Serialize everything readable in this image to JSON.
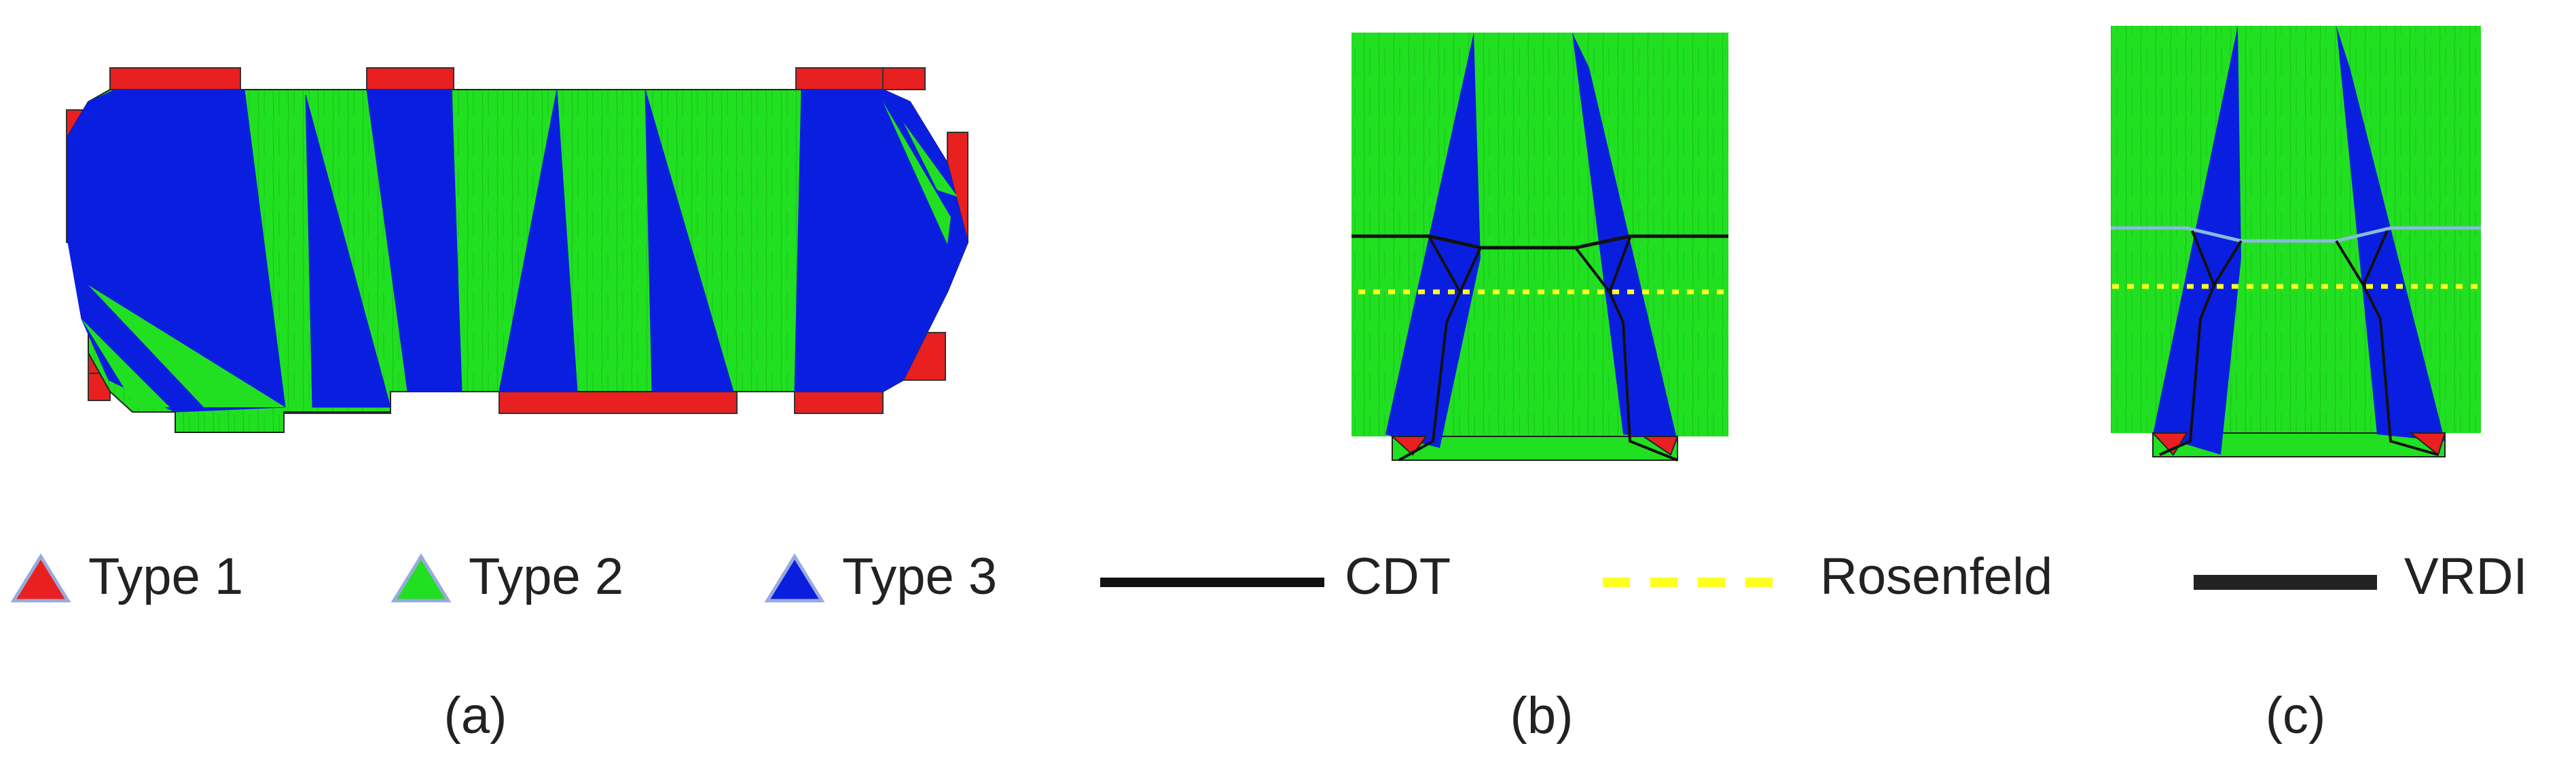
{
  "legend": {
    "type1": "Type 1",
    "type2": "Type 2",
    "type3": "Type 3",
    "cdt": "CDT",
    "rosenfeld": "Rosenfeld",
    "vrdi": "VRDI"
  },
  "panels": {
    "a": "(a)",
    "b": "(b)",
    "c": "(c)"
  },
  "colors": {
    "type1": "#e8201f",
    "type2": "#21e021",
    "type3": "#0a1ee0",
    "cdt": "#111111",
    "rosenfeld": "#ffff22",
    "vrdi": "#222222",
    "vrdi_line_c": "#88bbdd"
  }
}
